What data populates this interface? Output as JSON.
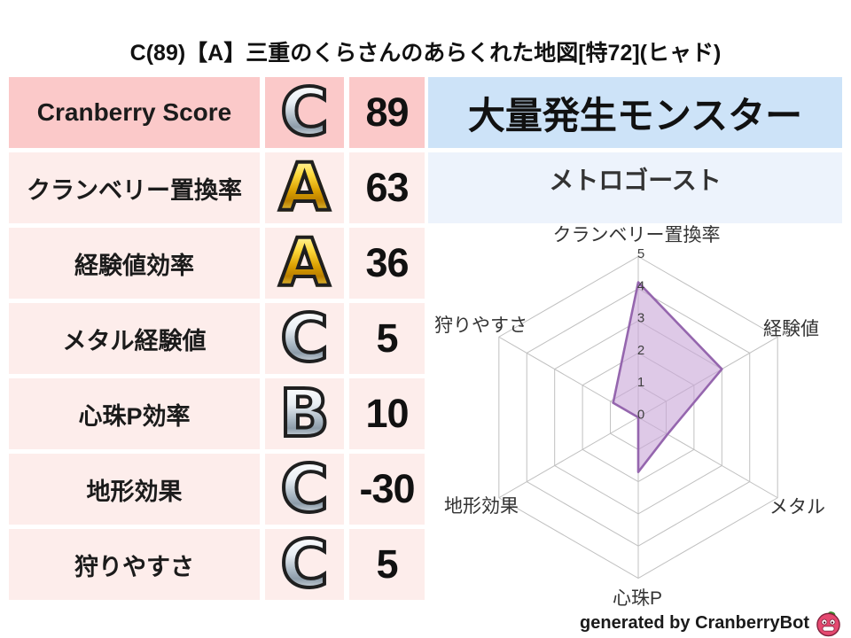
{
  "title": "C(89)【A】三重のくらさんのあらくれた地図[特72](ヒャド)",
  "stats_table": {
    "rows": [
      {
        "label": "Cranberry Score",
        "grade": "C",
        "grade_color": "silver",
        "value": "89"
      },
      {
        "label": "クランベリー置換率",
        "grade": "A",
        "grade_color": "gold",
        "value": "63"
      },
      {
        "label": "経験値効率",
        "grade": "A",
        "grade_color": "gold",
        "value": "36"
      },
      {
        "label": "メタル経験値",
        "grade": "C",
        "grade_color": "silver",
        "value": "5"
      },
      {
        "label": "心珠P効率",
        "grade": "B",
        "grade_color": "silver",
        "value": "10"
      },
      {
        "label": "地形効果",
        "grade": "C",
        "grade_color": "silver",
        "value": "-30"
      },
      {
        "label": "狩りやすさ",
        "grade": "C",
        "grade_color": "silver",
        "value": "5"
      }
    ]
  },
  "monster_panel": {
    "header": "大量発生モンスター",
    "monster": "メトロゴースト"
  },
  "chart_data": {
    "type": "radar",
    "categories": [
      "クランベリー置換率",
      "経験値",
      "メタル",
      "心珠P",
      "地形効果",
      "狩りやすさ"
    ],
    "values": [
      4.2,
      3,
      1.05,
      1.7,
      0,
      0.9
    ],
    "ticks": [
      0,
      1,
      2,
      3,
      4,
      5
    ],
    "axis_range": [
      0,
      5
    ],
    "grid": true,
    "legend": false,
    "fill_color": "#c9a8d8",
    "line_color": "#9566ae",
    "grid_color": "#c0c0c0",
    "tick_color": "#3f3f3f",
    "label_color": "#333333"
  },
  "footer": {
    "credit": "generated by CranberryBot",
    "icon": "cranberry-mascot-icon"
  },
  "colors": {
    "row_highlight_bg": "#fbc9c9",
    "row_bg": "#fdedeb",
    "panel_header_bg": "#cde3f8",
    "panel_body_bg": "#edf3fc"
  }
}
